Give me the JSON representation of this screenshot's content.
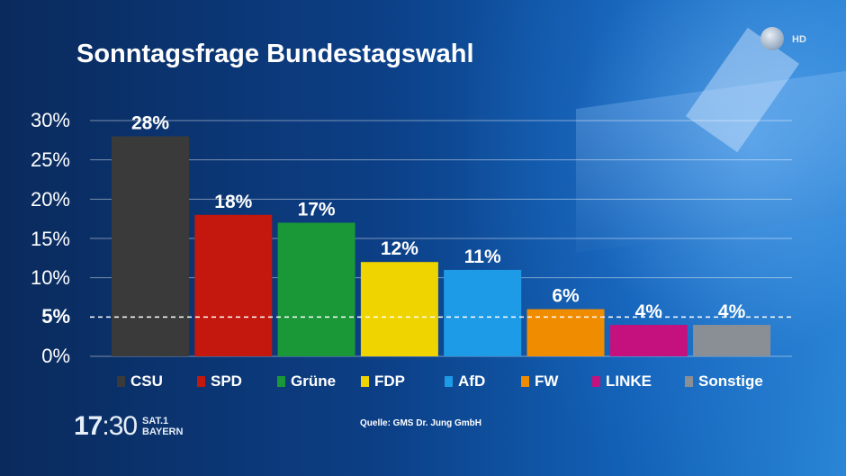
{
  "header": {
    "title": "Sonntagsfrage Bundestagswahl",
    "channel_badge": "HD"
  },
  "footer": {
    "source": "Quelle: GMS Dr. Jung GmbH",
    "clock_hour": "17",
    "clock_minute": ":30",
    "station_line1": "SAT.1",
    "station_line2": "BAYERN"
  },
  "y_ticks": [
    "30%",
    "25%",
    "20%",
    "15%",
    "10%",
    "5%",
    "0%"
  ],
  "chart_data": {
    "type": "bar",
    "title": "Sonntagsfrage Bundestagswahl",
    "categories": [
      "CSU",
      "SPD",
      "Grüne",
      "FDP",
      "AfD",
      "FW",
      "LINKE",
      "Sonstige"
    ],
    "values": [
      28,
      18,
      17,
      12,
      11,
      6,
      4,
      4
    ],
    "value_labels": [
      "28%",
      "18%",
      "17%",
      "12%",
      "11%",
      "6%",
      "4%",
      "4%"
    ],
    "colors": [
      "#3a3a3a",
      "#c4170e",
      "#1a9838",
      "#f0d400",
      "#1e9be6",
      "#f08c00",
      "#c4117e",
      "#8a8f96"
    ],
    "ylim": [
      0,
      30
    ],
    "threshold": 5,
    "threshold_label": "5%",
    "grid": true,
    "legend_position": "bottom"
  }
}
